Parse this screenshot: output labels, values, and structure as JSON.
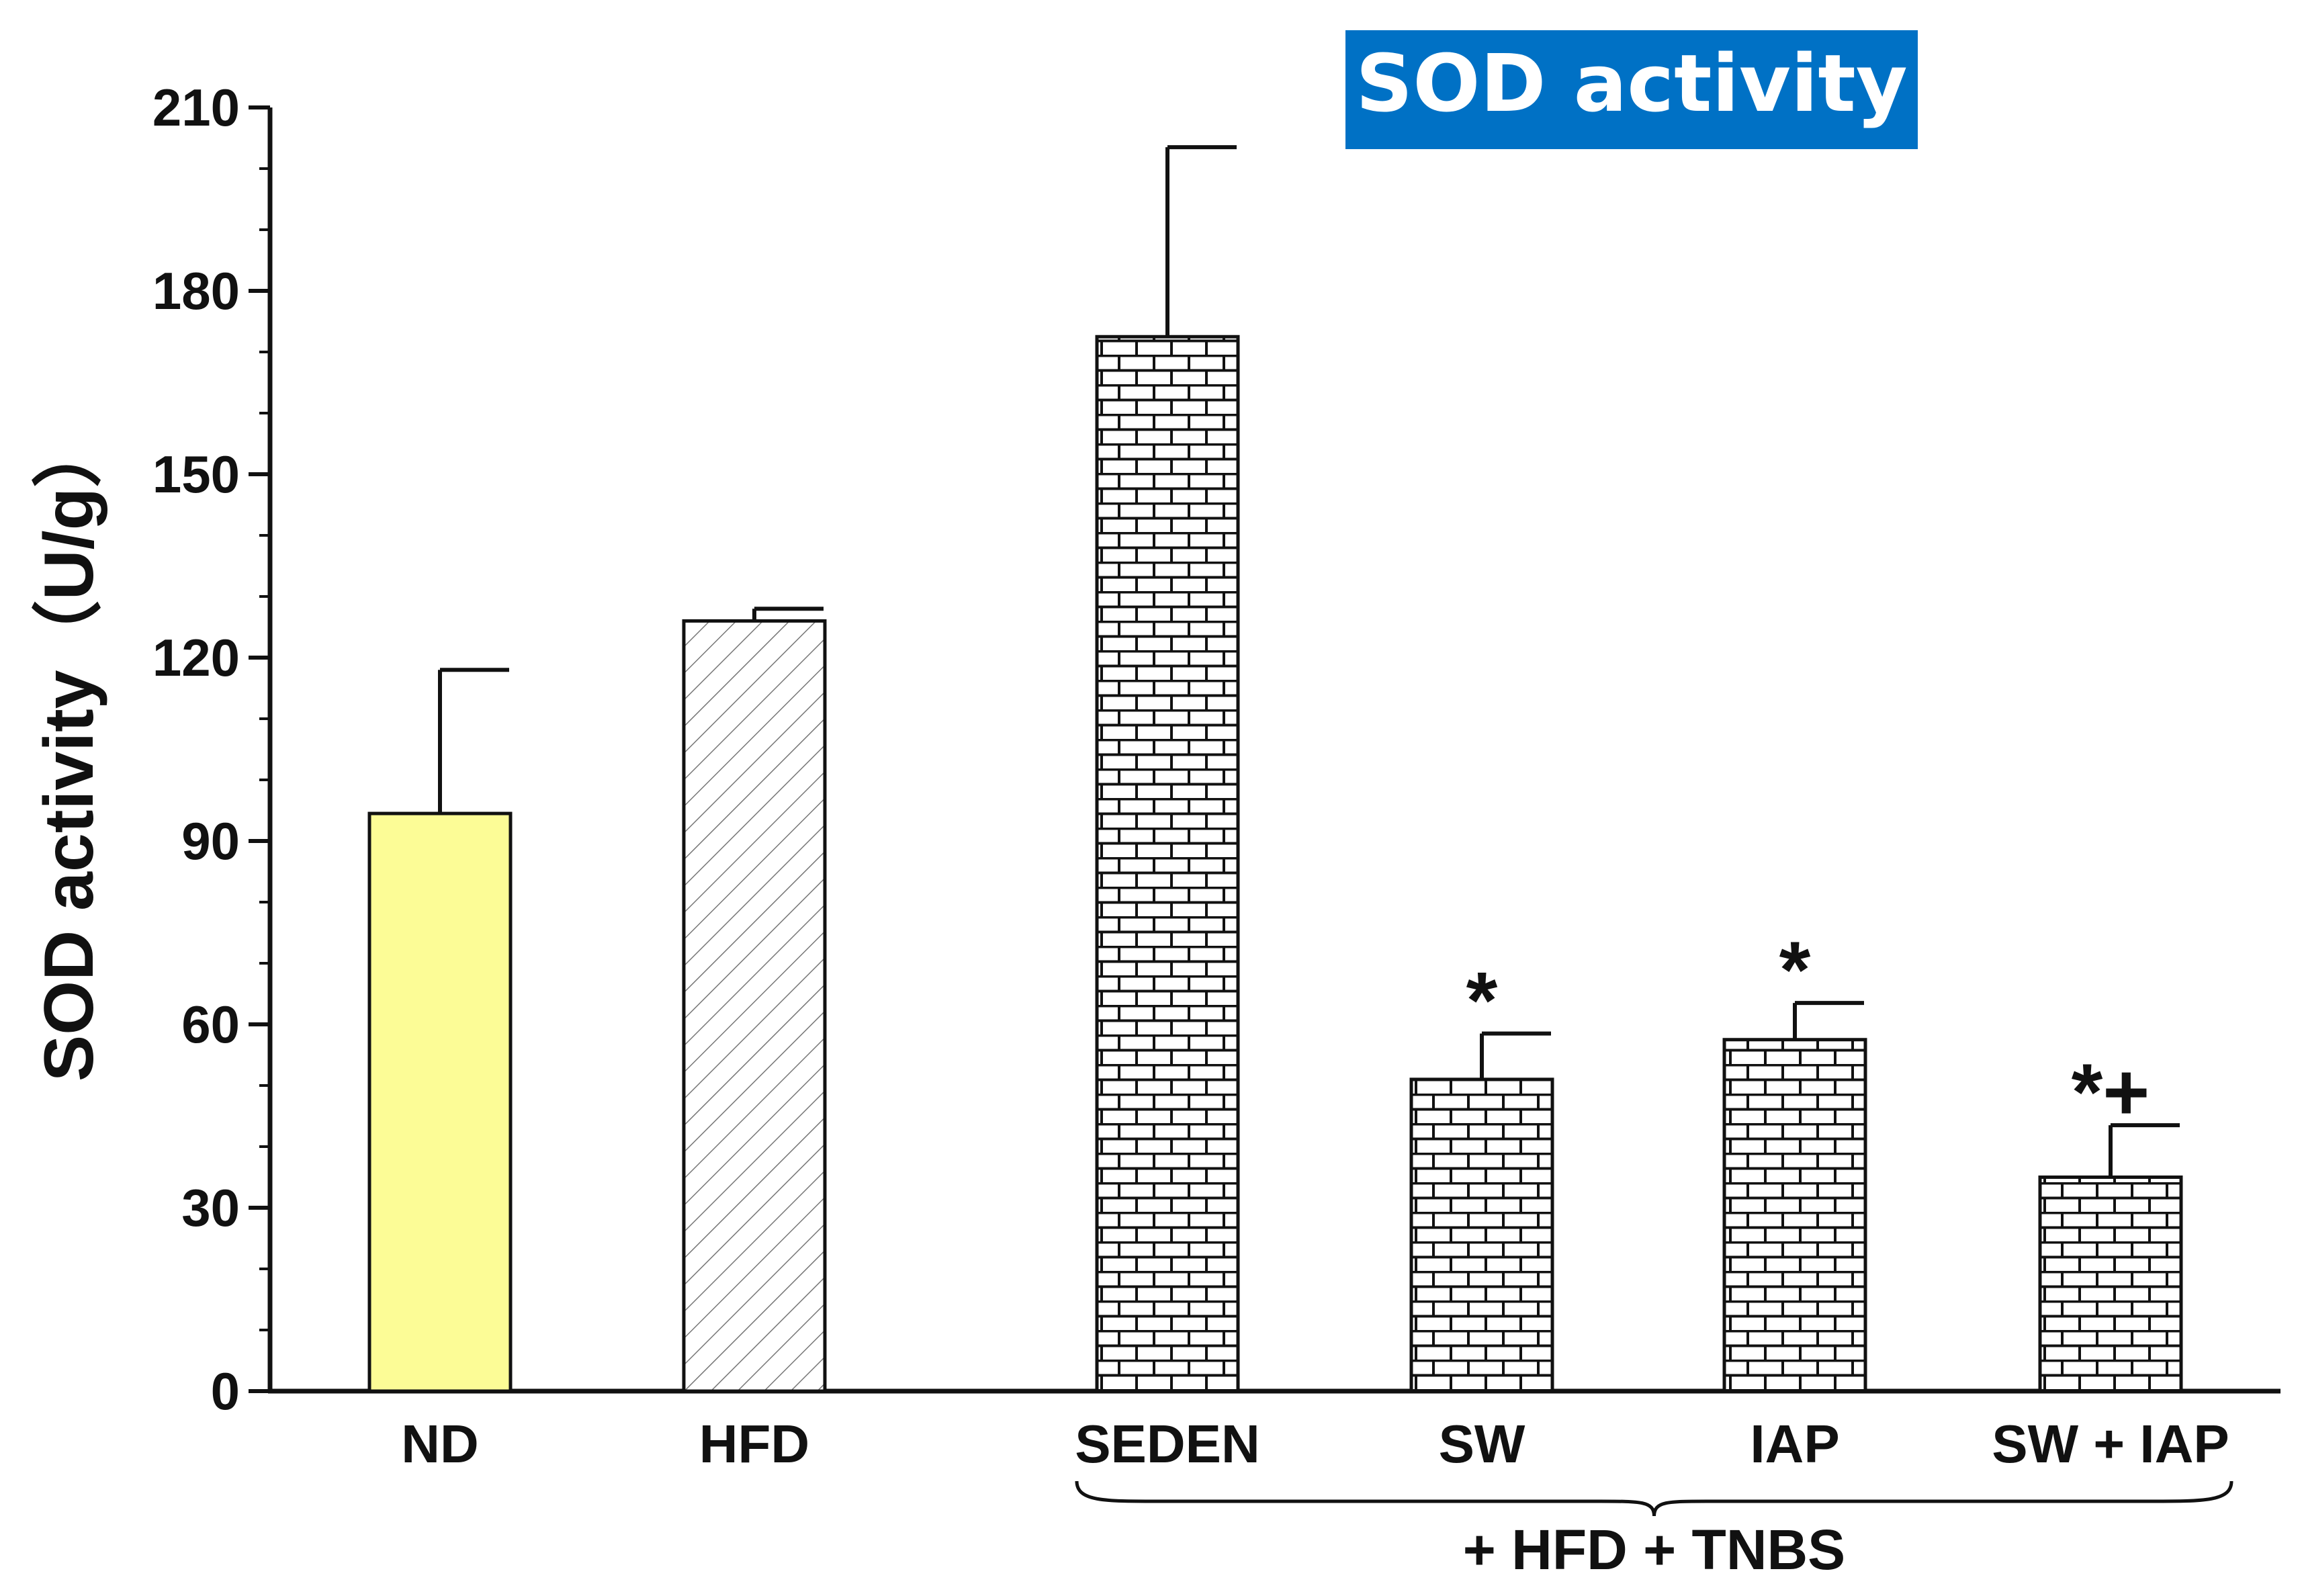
{
  "chart_data": {
    "type": "bar",
    "title": "SOD activity",
    "ylabel": "SOD activity（U/g）",
    "ylim": [
      0,
      210
    ],
    "yticks": [
      "0",
      "30",
      "60",
      "90",
      "120",
      "150",
      "180",
      "210"
    ],
    "categories": [
      "ND",
      "HFD",
      "SEDEN",
      "SW",
      "IAP",
      "SW +  IAP"
    ],
    "values": [
      94.5,
      126,
      172.5,
      51,
      57.5,
      35
    ],
    "errors": [
      23.5,
      2,
      31,
      7.5,
      6,
      8.5
    ],
    "significance": [
      "",
      "",
      "",
      "*",
      "*",
      "*+"
    ],
    "group_label": "+ HFD + TNBS",
    "fills": [
      "yellow",
      "hatch",
      "brick",
      "brick",
      "brick",
      "brick"
    ],
    "colors": {
      "title_bg": "#0071C5",
      "title_text": "#FFFFFF",
      "nd_fill": "#FCFC96",
      "axis": "#111111"
    }
  }
}
